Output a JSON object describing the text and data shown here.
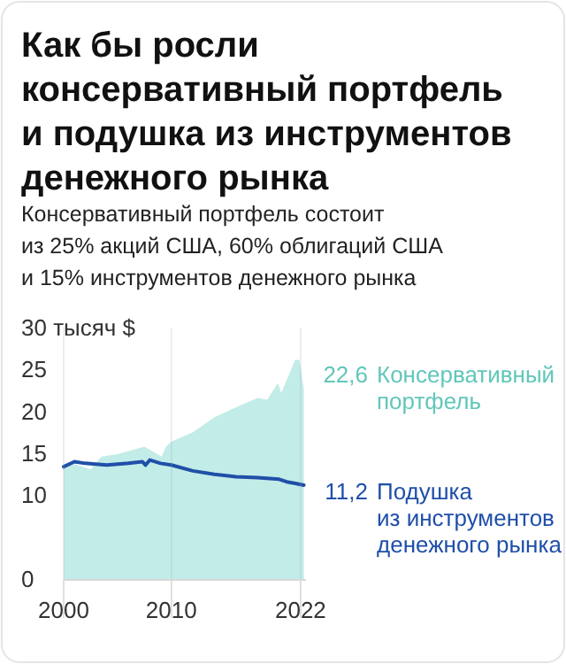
{
  "chart_data": {
    "type": "area",
    "title": "Как бы росли\nконсервативный портфель\nи подушка из инструментов\nденежного рынка",
    "subtitle": "Консервативный портфель состоит\nиз 25% акций США, 60% облигаций США\nи 15% инструментов денежного рынка",
    "xlim": [
      2000,
      2022.5
    ],
    "xticks": [
      2000,
      2010,
      2022
    ],
    "ylim": [
      0,
      30
    ],
    "yticks": [
      0,
      10,
      15,
      20,
      25,
      {
        "value": 30,
        "label": "30 тысяч $"
      }
    ],
    "grid": "x",
    "legend": false,
    "series": [
      {
        "name": "Консервативный\nпортфель",
        "color": "#c2ece7",
        "x": [
          2000,
          2001,
          2002.5,
          2003.5,
          2005,
          2007.5,
          2009.1,
          2009.5,
          2010,
          2012,
          2014,
          2016,
          2018,
          2018.9,
          2019.9,
          2020.2,
          2021,
          2021.5,
          2021.9,
          2022.3
        ],
        "values": [
          13.4,
          13.7,
          13.1,
          14.6,
          14.9,
          15.8,
          14.6,
          15.8,
          16.4,
          17.5,
          19.3,
          20.5,
          21.6,
          21.4,
          23.4,
          22.2,
          24.6,
          26.2,
          26.1,
          22.6
        ],
        "value_labels": [
          null,
          null,
          null,
          null,
          null,
          null,
          null,
          null,
          null,
          null,
          null,
          null,
          null,
          null,
          null,
          null,
          null,
          null,
          null,
          "22,6"
        ]
      },
      {
        "name": "Подушка\nиз инструментов\nденежного рынка",
        "type": "line",
        "color": "#1f4fa8",
        "x": [
          2000,
          2001,
          2002,
          2004,
          2006,
          2007.3,
          2007.6,
          2008,
          2009,
          2010,
          2012,
          2014,
          2016,
          2018,
          2020,
          2020.7,
          2021.5,
          2022.3
        ],
        "values": [
          13.4,
          14,
          13.8,
          13.6,
          13.8,
          14,
          13.6,
          14.2,
          13.8,
          13.6,
          12.9,
          12.5,
          12.2,
          12.1,
          11.9,
          11.6,
          11.4,
          11.2
        ],
        "value_labels": [
          null,
          null,
          null,
          null,
          null,
          null,
          null,
          null,
          null,
          null,
          null,
          null,
          null,
          null,
          null,
          null,
          null,
          "11,2"
        ]
      }
    ]
  }
}
